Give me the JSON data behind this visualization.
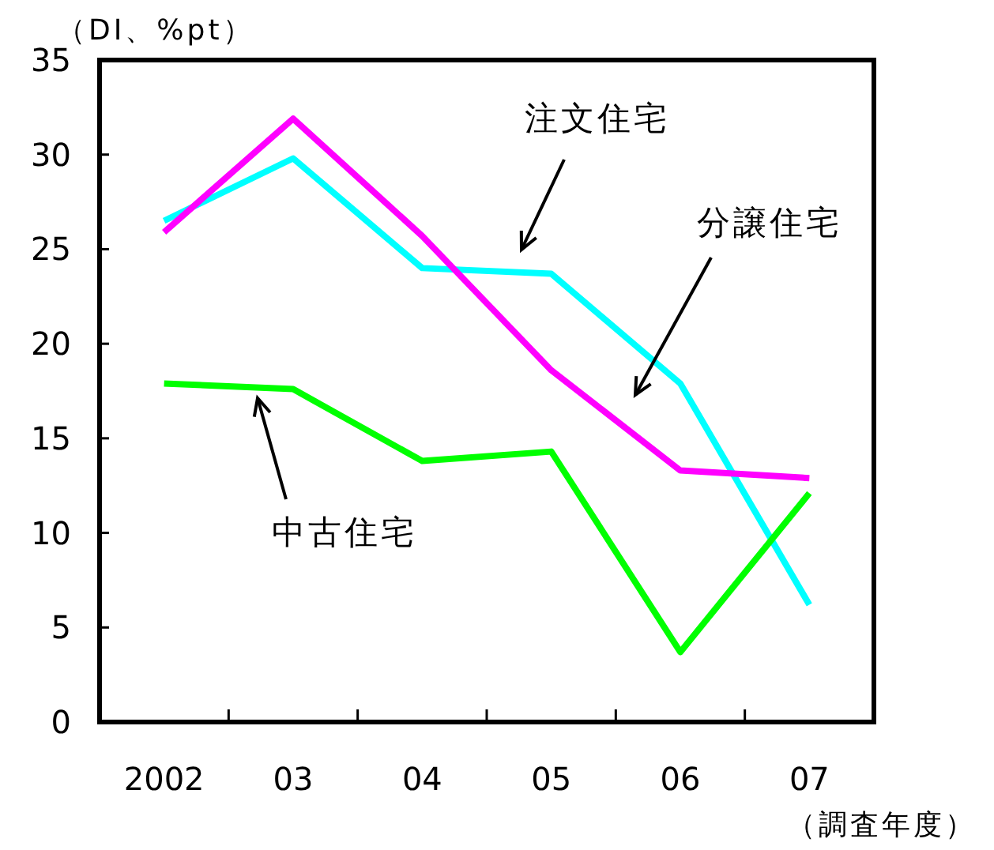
{
  "chart_data": {
    "type": "line",
    "ylabel": "（DI、%pt）",
    "xlabel": "（調査年度）",
    "categories": [
      "2002",
      "03",
      "04",
      "05",
      "06",
      "07"
    ],
    "ylim": [
      0,
      35
    ],
    "yticks": [
      0,
      5,
      10,
      15,
      20,
      25,
      30,
      35
    ],
    "grid": false,
    "marker": "none",
    "line_style": "solid",
    "annotations": [
      "注文住宅",
      "分譲住宅",
      "中古住宅"
    ],
    "series": [
      {
        "color": "#00ffff",
        "values": [
          26.5,
          29.8,
          24.0,
          23.7,
          17.9,
          6.2
        ]
      },
      {
        "color": "#ff00ff",
        "values": [
          25.9,
          31.9,
          25.7,
          18.6,
          13.3,
          12.9
        ]
      },
      {
        "color": "#00ff00",
        "values": [
          17.9,
          17.6,
          13.8,
          14.3,
          3.7,
          12.1
        ]
      }
    ]
  }
}
